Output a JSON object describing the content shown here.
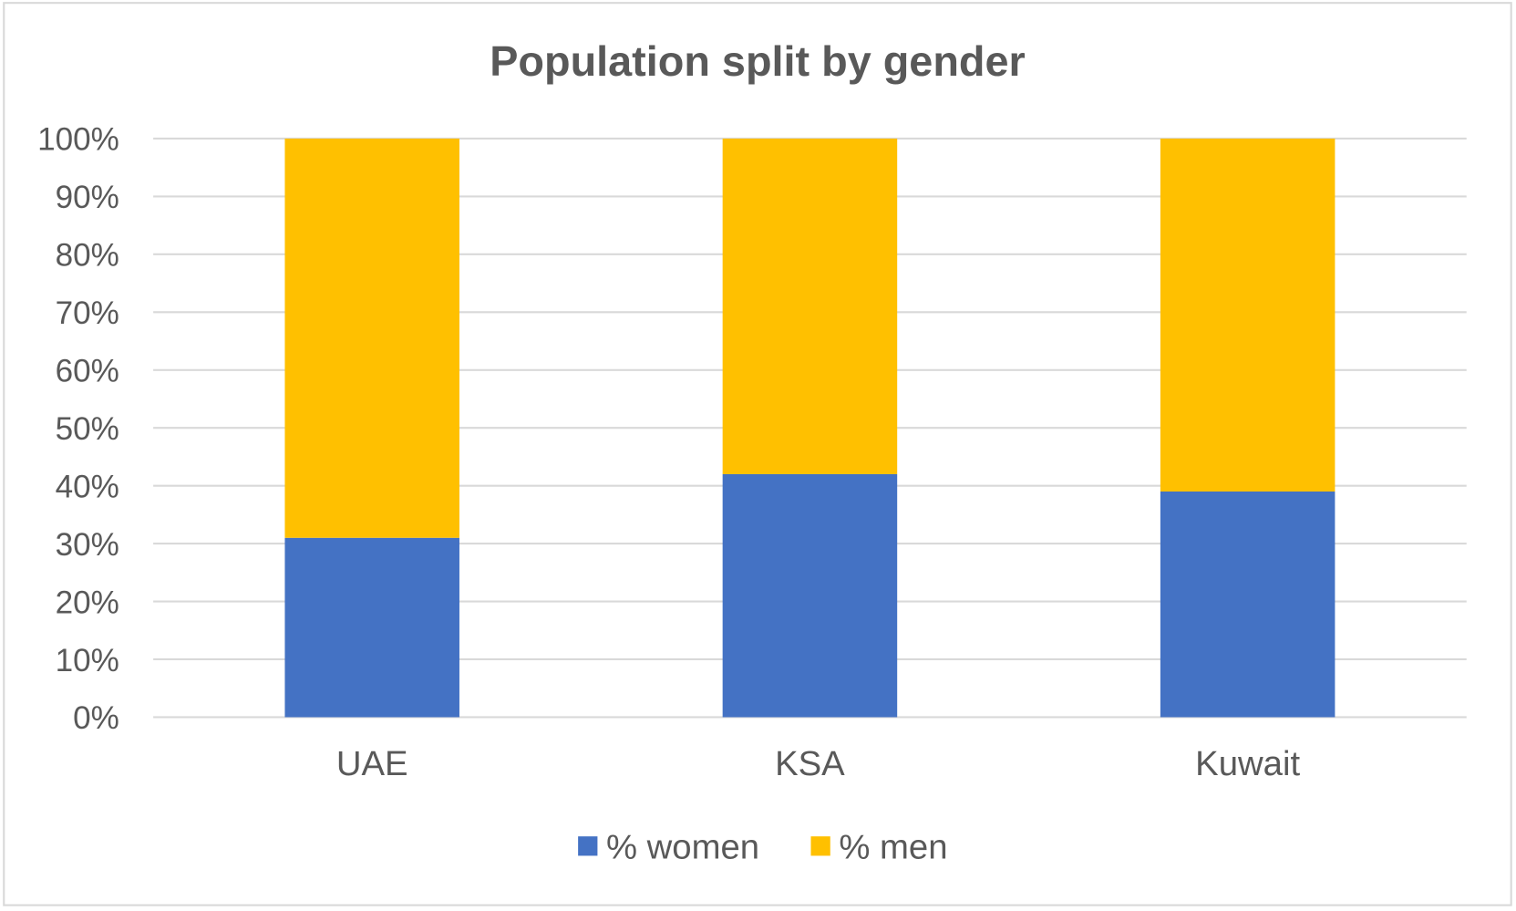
{
  "chart_data": {
    "type": "bar",
    "stacked": true,
    "percent_stacked": true,
    "title": "Population split by gender",
    "xlabel": "",
    "ylabel": "",
    "categories": [
      "UAE",
      "KSA",
      "Kuwait"
    ],
    "series": [
      {
        "name": "% women",
        "color": "#4472C4",
        "values": [
          31,
          42,
          39
        ]
      },
      {
        "name": "% men",
        "color": "#FFC000",
        "values": [
          69,
          58,
          61
        ]
      }
    ],
    "ylim": [
      0,
      100
    ],
    "yticks": [
      "0%",
      "10%",
      "20%",
      "30%",
      "40%",
      "50%",
      "60%",
      "70%",
      "80%",
      "90%",
      "100%"
    ],
    "grid": true,
    "legend_position": "bottom"
  }
}
